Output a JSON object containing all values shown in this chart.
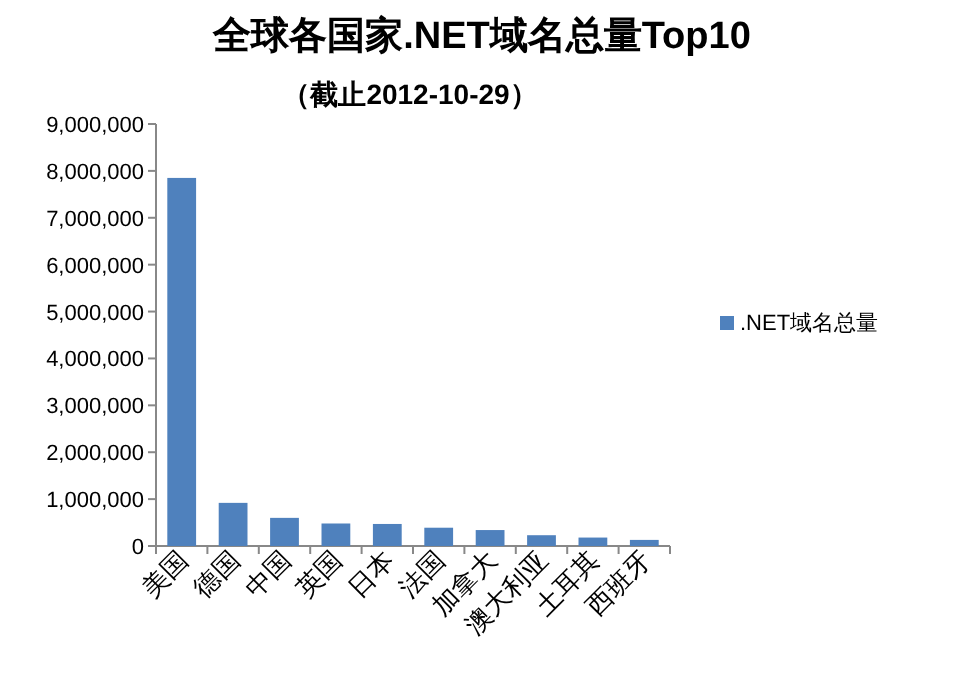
{
  "chart_data": {
    "type": "bar",
    "title": "全球各国家.NET域名总量Top10",
    "subtitle": "（截止2012-10-29）",
    "categories": [
      "美国",
      "德国",
      "中国",
      "英国",
      "日本",
      "法国",
      "加拿大",
      "澳大利亚",
      "土耳其",
      "西班牙"
    ],
    "series": [
      {
        "name": ".NET域名总量",
        "color": "#4f81bd",
        "values": [
          7850000,
          920000,
          600000,
          480000,
          470000,
          390000,
          340000,
          230000,
          180000,
          130000
        ]
      }
    ],
    "ylim": [
      0,
      9000000
    ],
    "yticks": [
      {
        "value": 0,
        "label": "0"
      },
      {
        "value": 1000000,
        "label": "1,000,000"
      },
      {
        "value": 2000000,
        "label": "2,000,000"
      },
      {
        "value": 3000000,
        "label": "3,000,000"
      },
      {
        "value": 4000000,
        "label": "4,000,000"
      },
      {
        "value": 5000000,
        "label": "5,000,000"
      },
      {
        "value": 6000000,
        "label": "6,000,000"
      },
      {
        "value": 7000000,
        "label": "7,000,000"
      },
      {
        "value": 8000000,
        "label": "8,000,000"
      },
      {
        "value": 9000000,
        "label": "9,000,000"
      }
    ],
    "grid": false,
    "legend": "right"
  }
}
